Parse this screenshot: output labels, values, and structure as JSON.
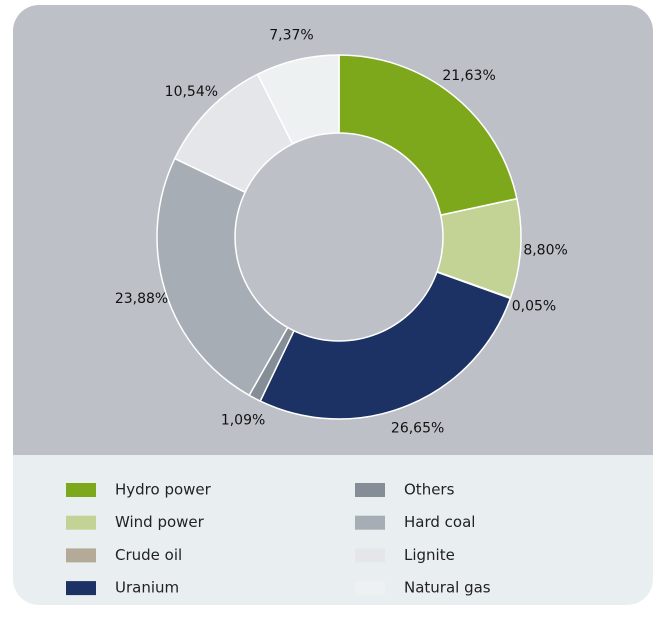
{
  "chart_data": {
    "type": "donut",
    "categories": [
      "Hydro power",
      "Wind power",
      "Crude oil",
      "Uranium",
      "Others",
      "Hard coal",
      "Lignite",
      "Natural gas"
    ],
    "values": [
      21.63,
      8.8,
      0.05,
      26.65,
      1.09,
      23.88,
      10.54,
      7.37
    ],
    "value_labels": [
      "21,63%",
      "8,80%",
      "0,05%",
      "26,65%",
      "1,09%",
      "23,88%",
      "10,54%",
      "7,37%"
    ],
    "colors": [
      "#7ea81b",
      "#c3d395",
      "#b3ab97",
      "#1d3264",
      "#858e96",
      "#a7adb5",
      "#e4e6ea",
      "#edf1f2"
    ]
  }
}
